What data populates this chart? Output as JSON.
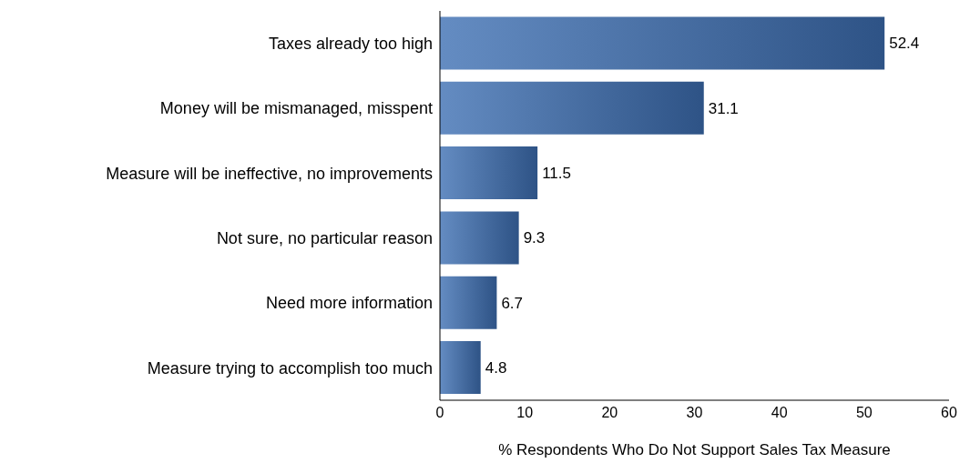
{
  "chart_data": {
    "type": "bar",
    "orientation": "horizontal",
    "xlabel": "% Respondents Who Do Not Support Sales Tax Measure",
    "categories": [
      "Taxes already too high",
      "Money will be mismanaged, misspent",
      "Measure will be ineffective, no improvements",
      "Not sure, no particular reason",
      "Need more information",
      "Measure trying to accomplish too much"
    ],
    "values": [
      52.4,
      31.1,
      11.5,
      9.3,
      6.7,
      4.8
    ],
    "color": "#3d6fb3",
    "xlim": [
      0,
      60
    ],
    "xticks": [
      0,
      10,
      20,
      30,
      40,
      50,
      60
    ],
    "grid": false,
    "data_labels": true,
    "legend": false
  }
}
